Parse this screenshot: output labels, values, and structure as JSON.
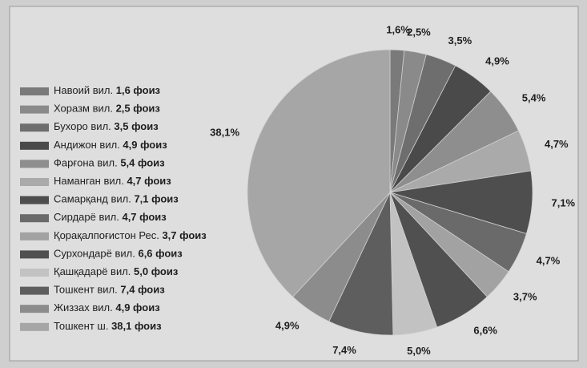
{
  "chart_data": {
    "type": "pie",
    "categories": [
      "Навоий вил.",
      "Хоразм вил.",
      "Бухоро вил.",
      "Андижон вил.",
      "Фарғона вил.",
      "Наманган вил.",
      "Самарқанд вил.",
      "Сирдарё вил.",
      "Қорақалпоғистон Рес.",
      "Сурхондарё вил.",
      "Қашқадарё вил.",
      "Тошкент вил.",
      "Жиззах вил.",
      "Тошкент ш."
    ],
    "values": [
      1.6,
      2.5,
      3.5,
      4.9,
      5.4,
      4.7,
      7.1,
      4.7,
      3.7,
      6.6,
      5.0,
      7.4,
      4.9,
      38.1
    ],
    "value_labels": [
      "1,6%",
      "2,5%",
      "3,5%",
      "4,9%",
      "5,4%",
      "4,7%",
      "7,1%",
      "4,7%",
      "3,7%",
      "6,6%",
      "5,0%",
      "7,4%",
      "4,9%",
      "38,1%"
    ],
    "legend_value_labels": [
      "1,6 фоиз",
      "2,5 фоиз",
      "3,5 фоиз",
      "4,9 фоиз",
      "5,4 фоиз",
      "4,7 фоиз",
      "7,1 фоиз",
      "4,7 фоиз",
      "3,7 фоиз",
      "6,6 фоиз",
      "5,0 фоиз",
      "7,4 фоиз",
      "4,9 фоиз",
      "38,1 фоиз"
    ],
    "colors": [
      "#7a7a7a",
      "#8a8a8a",
      "#6e6e6e",
      "#4a4a4a",
      "#8e8e8e",
      "#aaaaaa",
      "#4e4e4e",
      "#6a6a6a",
      "#a2a2a2",
      "#505050",
      "#c2c2c2",
      "#5e5e5e",
      "#8c8c8c",
      "#a6a6a6"
    ],
    "legend": "left"
  }
}
